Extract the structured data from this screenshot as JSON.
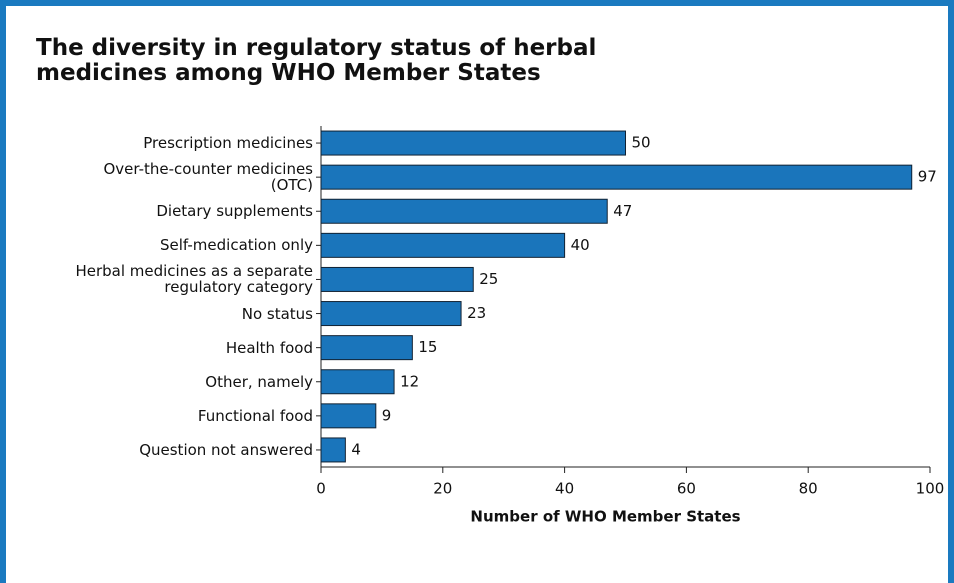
{
  "chart_data": {
    "type": "bar",
    "orientation": "horizontal",
    "title": "The diversity in regulatory status of herbal medicines among WHO Member States",
    "categories": [
      "Prescription medicines",
      "Over-the-counter medicines (OTC)",
      "Dietary supplements",
      "Self-medication only",
      "Herbal medicines as a separate regulatory category",
      "No status",
      "Health food",
      "Other, namely",
      "Functional food",
      "Question not answered"
    ],
    "values": [
      50,
      97,
      47,
      40,
      25,
      23,
      15,
      12,
      9,
      4
    ],
    "color": "#1a75bb",
    "xlabel": "Number of WHO Member States",
    "xlim": [
      0,
      100
    ],
    "xticks": [
      0,
      20,
      40,
      60,
      80,
      100
    ]
  }
}
